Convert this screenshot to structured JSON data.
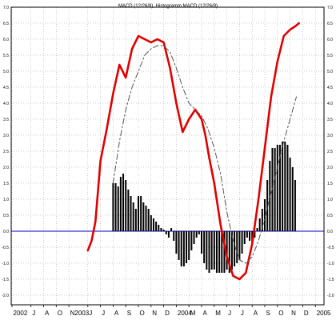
{
  "chart_data": {
    "type": "line",
    "title": "MACD (12/26/9), Histogramm MACD (12/26/9)",
    "xlabel": "",
    "ylabel": "",
    "ylim": [
      -2.3,
      7.0
    ],
    "grid": true,
    "y_ticks": [
      "7.0",
      "6.5",
      "6.0",
      "5.5",
      "5.0",
      "4.5",
      "4.0",
      "3.5",
      "3.0",
      "2.5",
      "2.0",
      "1.5",
      "1.0",
      "0.5",
      "0.0",
      "-0.5",
      "-1.0",
      "-1.5",
      "-2.0"
    ],
    "y_tick_values": [
      7.0,
      6.5,
      6.0,
      5.5,
      5.0,
      4.5,
      4.0,
      3.5,
      3.0,
      2.5,
      2.0,
      1.5,
      1.0,
      0.5,
      0.0,
      -0.5,
      -1.0,
      -1.5,
      -2.0
    ],
    "x_ticks": [
      "2002",
      "J",
      "A",
      "O",
      "N2003",
      "J",
      "J",
      "A",
      "S",
      "O",
      "N",
      "D",
      "2004",
      "M",
      "A",
      "M",
      "J",
      "J",
      "A",
      "S",
      "O",
      "N",
      "D",
      "2005"
    ],
    "x_tick_pos": [
      0,
      1.5,
      2.5,
      3.5,
      4.5,
      6,
      7,
      8,
      9,
      10,
      11,
      12,
      13,
      14,
      15,
      16,
      17,
      18,
      19,
      20,
      21,
      22,
      23,
      24
    ],
    "series": [
      {
        "key": "macd",
        "color": "#e00000",
        "x": [
          6.0,
          6.3,
          6.6,
          7.0,
          7.5,
          8.0,
          8.5,
          9.0,
          9.5,
          10.0,
          10.5,
          11.0,
          11.5,
          12.0,
          12.5,
          13.0,
          13.5,
          14.0,
          14.5,
          15.0,
          15.3,
          15.6,
          16.0,
          16.5,
          17.0,
          17.5,
          18.0,
          18.5,
          19.0,
          19.5,
          20.0,
          20.5,
          21.0,
          21.5,
          22.0,
          22.4,
          22.7
        ],
        "values": [
          -0.6,
          -0.3,
          0.3,
          2.2,
          3.2,
          4.3,
          5.2,
          4.8,
          5.7,
          6.1,
          6.0,
          5.9,
          6.0,
          5.9,
          5.1,
          4.0,
          3.1,
          3.5,
          3.8,
          3.5,
          3.0,
          2.3,
          1.5,
          0.2,
          -0.8,
          -1.4,
          -1.5,
          -1.3,
          -0.4,
          1.0,
          2.6,
          4.2,
          5.3,
          6.1,
          6.3,
          6.4,
          6.5
        ]
      },
      {
        "key": "signal",
        "color": "#555555",
        "dash": "7,3,2,3",
        "x": [
          8.0,
          8.5,
          9.0,
          9.5,
          10.0,
          10.5,
          11.0,
          11.5,
          12.0,
          12.5,
          13.0,
          13.5,
          14.0,
          14.5,
          15.0,
          15.5,
          16.0,
          16.5,
          17.0,
          17.5,
          18.0,
          18.5,
          19.0,
          19.5,
          20.0,
          20.5,
          21.0,
          21.5,
          22.0,
          22.5
        ],
        "values": [
          1.5,
          2.8,
          3.8,
          4.5,
          5.0,
          5.5,
          5.7,
          5.8,
          5.8,
          5.6,
          5.1,
          4.5,
          4.0,
          3.8,
          3.6,
          3.2,
          2.6,
          1.8,
          0.6,
          -0.3,
          -0.9,
          -1.0,
          -0.8,
          -0.3,
          0.4,
          1.2,
          2.0,
          2.8,
          3.5,
          4.2
        ]
      }
    ],
    "histogram": {
      "color": "#000000",
      "x": [
        8.0,
        8.2,
        8.4,
        8.6,
        8.8,
        9.0,
        9.2,
        9.4,
        9.6,
        9.8,
        10.0,
        10.2,
        10.4,
        10.6,
        10.8,
        11.0,
        11.2,
        11.4,
        11.6,
        11.8,
        12.0,
        12.2,
        12.4,
        12.6,
        12.8,
        13.0,
        13.2,
        13.4,
        13.6,
        13.8,
        14.0,
        14.2,
        14.4,
        14.6,
        14.8,
        15.0,
        15.2,
        15.4,
        15.6,
        15.8,
        16.0,
        16.2,
        16.4,
        16.6,
        16.8,
        17.0,
        17.2,
        17.4,
        17.6,
        17.8,
        18.0,
        18.2,
        18.4,
        18.6,
        18.8,
        19.0,
        19.2,
        19.4,
        19.6,
        19.8,
        20.0,
        20.2,
        20.4,
        20.6,
        20.8,
        21.0,
        21.2,
        21.4,
        21.6,
        21.8,
        22.0,
        22.2,
        22.4
      ],
      "values": [
        1.5,
        1.5,
        1.4,
        1.7,
        1.8,
        1.6,
        1.3,
        1.1,
        0.9,
        0.7,
        1.1,
        1.1,
        0.9,
        0.8,
        0.7,
        0.5,
        0.4,
        0.3,
        0.2,
        0.1,
        0.05,
        -0.1,
        -0.2,
        0.1,
        -0.3,
        -0.7,
        -0.9,
        -1.1,
        -1.1,
        -1.0,
        -0.9,
        -0.6,
        -0.4,
        -0.2,
        -0.1,
        -0.7,
        -1.0,
        -1.2,
        -1.3,
        -1.2,
        -1.2,
        -1.3,
        -1.3,
        -1.3,
        -1.3,
        -1.2,
        -1.3,
        -1.2,
        -1.1,
        -1.0,
        -0.9,
        -0.7,
        -0.4,
        -0.2,
        -0.3,
        -0.4,
        -0.2,
        0.1,
        0.4,
        0.7,
        1.0,
        1.6,
        2.2,
        2.6,
        2.6,
        2.7,
        2.7,
        2.8,
        2.8,
        2.7,
        2.3,
        2.0,
        1.6
      ]
    },
    "zero_line_color": "#0000cc",
    "grid_color": "#999999"
  }
}
